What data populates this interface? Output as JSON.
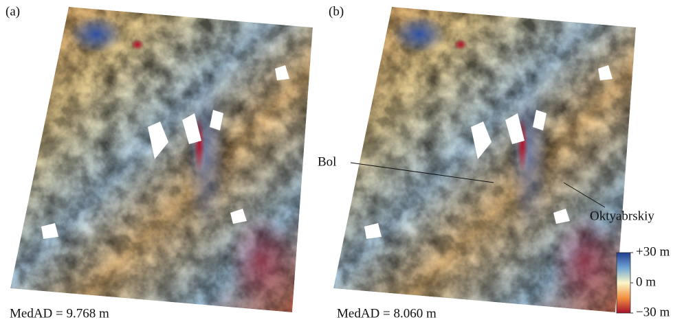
{
  "panels": [
    {
      "label": "(a)",
      "caption": "MedAD = 9.768 m"
    },
    {
      "label": "(b)",
      "caption": "MedAD = 8.060 m",
      "annotations": [
        "Bol",
        "Oktyabrskiy"
      ]
    }
  ],
  "colorbar": {
    "lim": [
      -30,
      30
    ],
    "ticks": [
      {
        "value": 30,
        "label": "+30 m"
      },
      {
        "value": 0,
        "label": "0 m"
      },
      {
        "value": -30,
        "label": "−30 m"
      }
    ]
  }
}
